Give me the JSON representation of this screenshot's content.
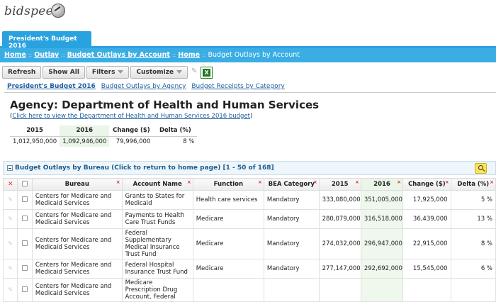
{
  "app": {
    "logo_text": "bidspeed"
  },
  "tabs": [
    {
      "label": "President's Budget 2016"
    }
  ],
  "breadcrumb": [
    {
      "label": "Home",
      "link": true
    },
    {
      "label": "Outlay",
      "link": true
    },
    {
      "label": "Budget Outlays by Account",
      "link": true
    },
    {
      "label": "Home",
      "link": true
    },
    {
      "label": "Budget Outlays by Account",
      "link": false
    }
  ],
  "breadcrumb_sep": "::",
  "toolbar": {
    "refresh": "Refresh",
    "show_all": "Show All",
    "filters": "Filters",
    "customize": "Customize"
  },
  "quick_links": [
    {
      "label": "President's Budget 2016"
    },
    {
      "label": "Budget Outlays by Agency"
    },
    {
      "label": "Budget Receipts by Category"
    }
  ],
  "agency": {
    "title": "Agency: Department of Health and Human Services",
    "budget_link_prefix": "(",
    "budget_link": "Click here to view the Department of Health and Human Services 2016 budget",
    "budget_link_suffix": ")"
  },
  "summary": {
    "headers": [
      "2015",
      "2016",
      "Change ($)",
      "Delta (%)"
    ],
    "values": [
      "1,012,950,000",
      "1,092,946,000",
      "79,996,000",
      "8 %"
    ]
  },
  "grid": {
    "title": "Budget Outlays by Bureau (Click to return to home page) [1 - 50 of 168]",
    "columns": [
      "Bureau",
      "Account Name",
      "Function",
      "BEA Category",
      "2015",
      "2016",
      "Change ($)",
      "Delta (%)"
    ],
    "rows": [
      {
        "bureau": "Centers for Medicare and Medicaid Services",
        "account": "Grants to States for Medicaid",
        "function": "Health care services",
        "bea": "Mandatory",
        "y2015": "333,080,000",
        "y2016": "351,005,000",
        "change": "17,925,000",
        "delta": "5 %"
      },
      {
        "bureau": "Centers for Medicare and Medicaid Services",
        "account": "Payments to Health Care Trust Funds",
        "function": "Medicare",
        "bea": "Mandatory",
        "y2015": "280,079,000",
        "y2016": "316,518,000",
        "change": "36,439,000",
        "delta": "13 %"
      },
      {
        "bureau": "Centers for Medicare and Medicaid Services",
        "account": "Federal Supplementary Medical Insurance Trust Fund",
        "function": "Medicare",
        "bea": "Mandatory",
        "y2015": "274,032,000",
        "y2016": "296,947,000",
        "change": "22,915,000",
        "delta": "8 %"
      },
      {
        "bureau": "Centers for Medicare and Medicaid Services",
        "account": "Federal Hospital Insurance Trust Fund",
        "function": "Medicare",
        "bea": "Mandatory",
        "y2015": "277,147,000",
        "y2016": "292,692,000",
        "change": "15,545,000",
        "delta": "6 %"
      },
      {
        "bureau": "Centers for Medicare and Medicaid Services",
        "account": "Medicare Prescription Drug Account, Federal",
        "function": "",
        "bea": "",
        "y2015": "",
        "y2016": "",
        "change": "",
        "delta": ""
      }
    ]
  }
}
